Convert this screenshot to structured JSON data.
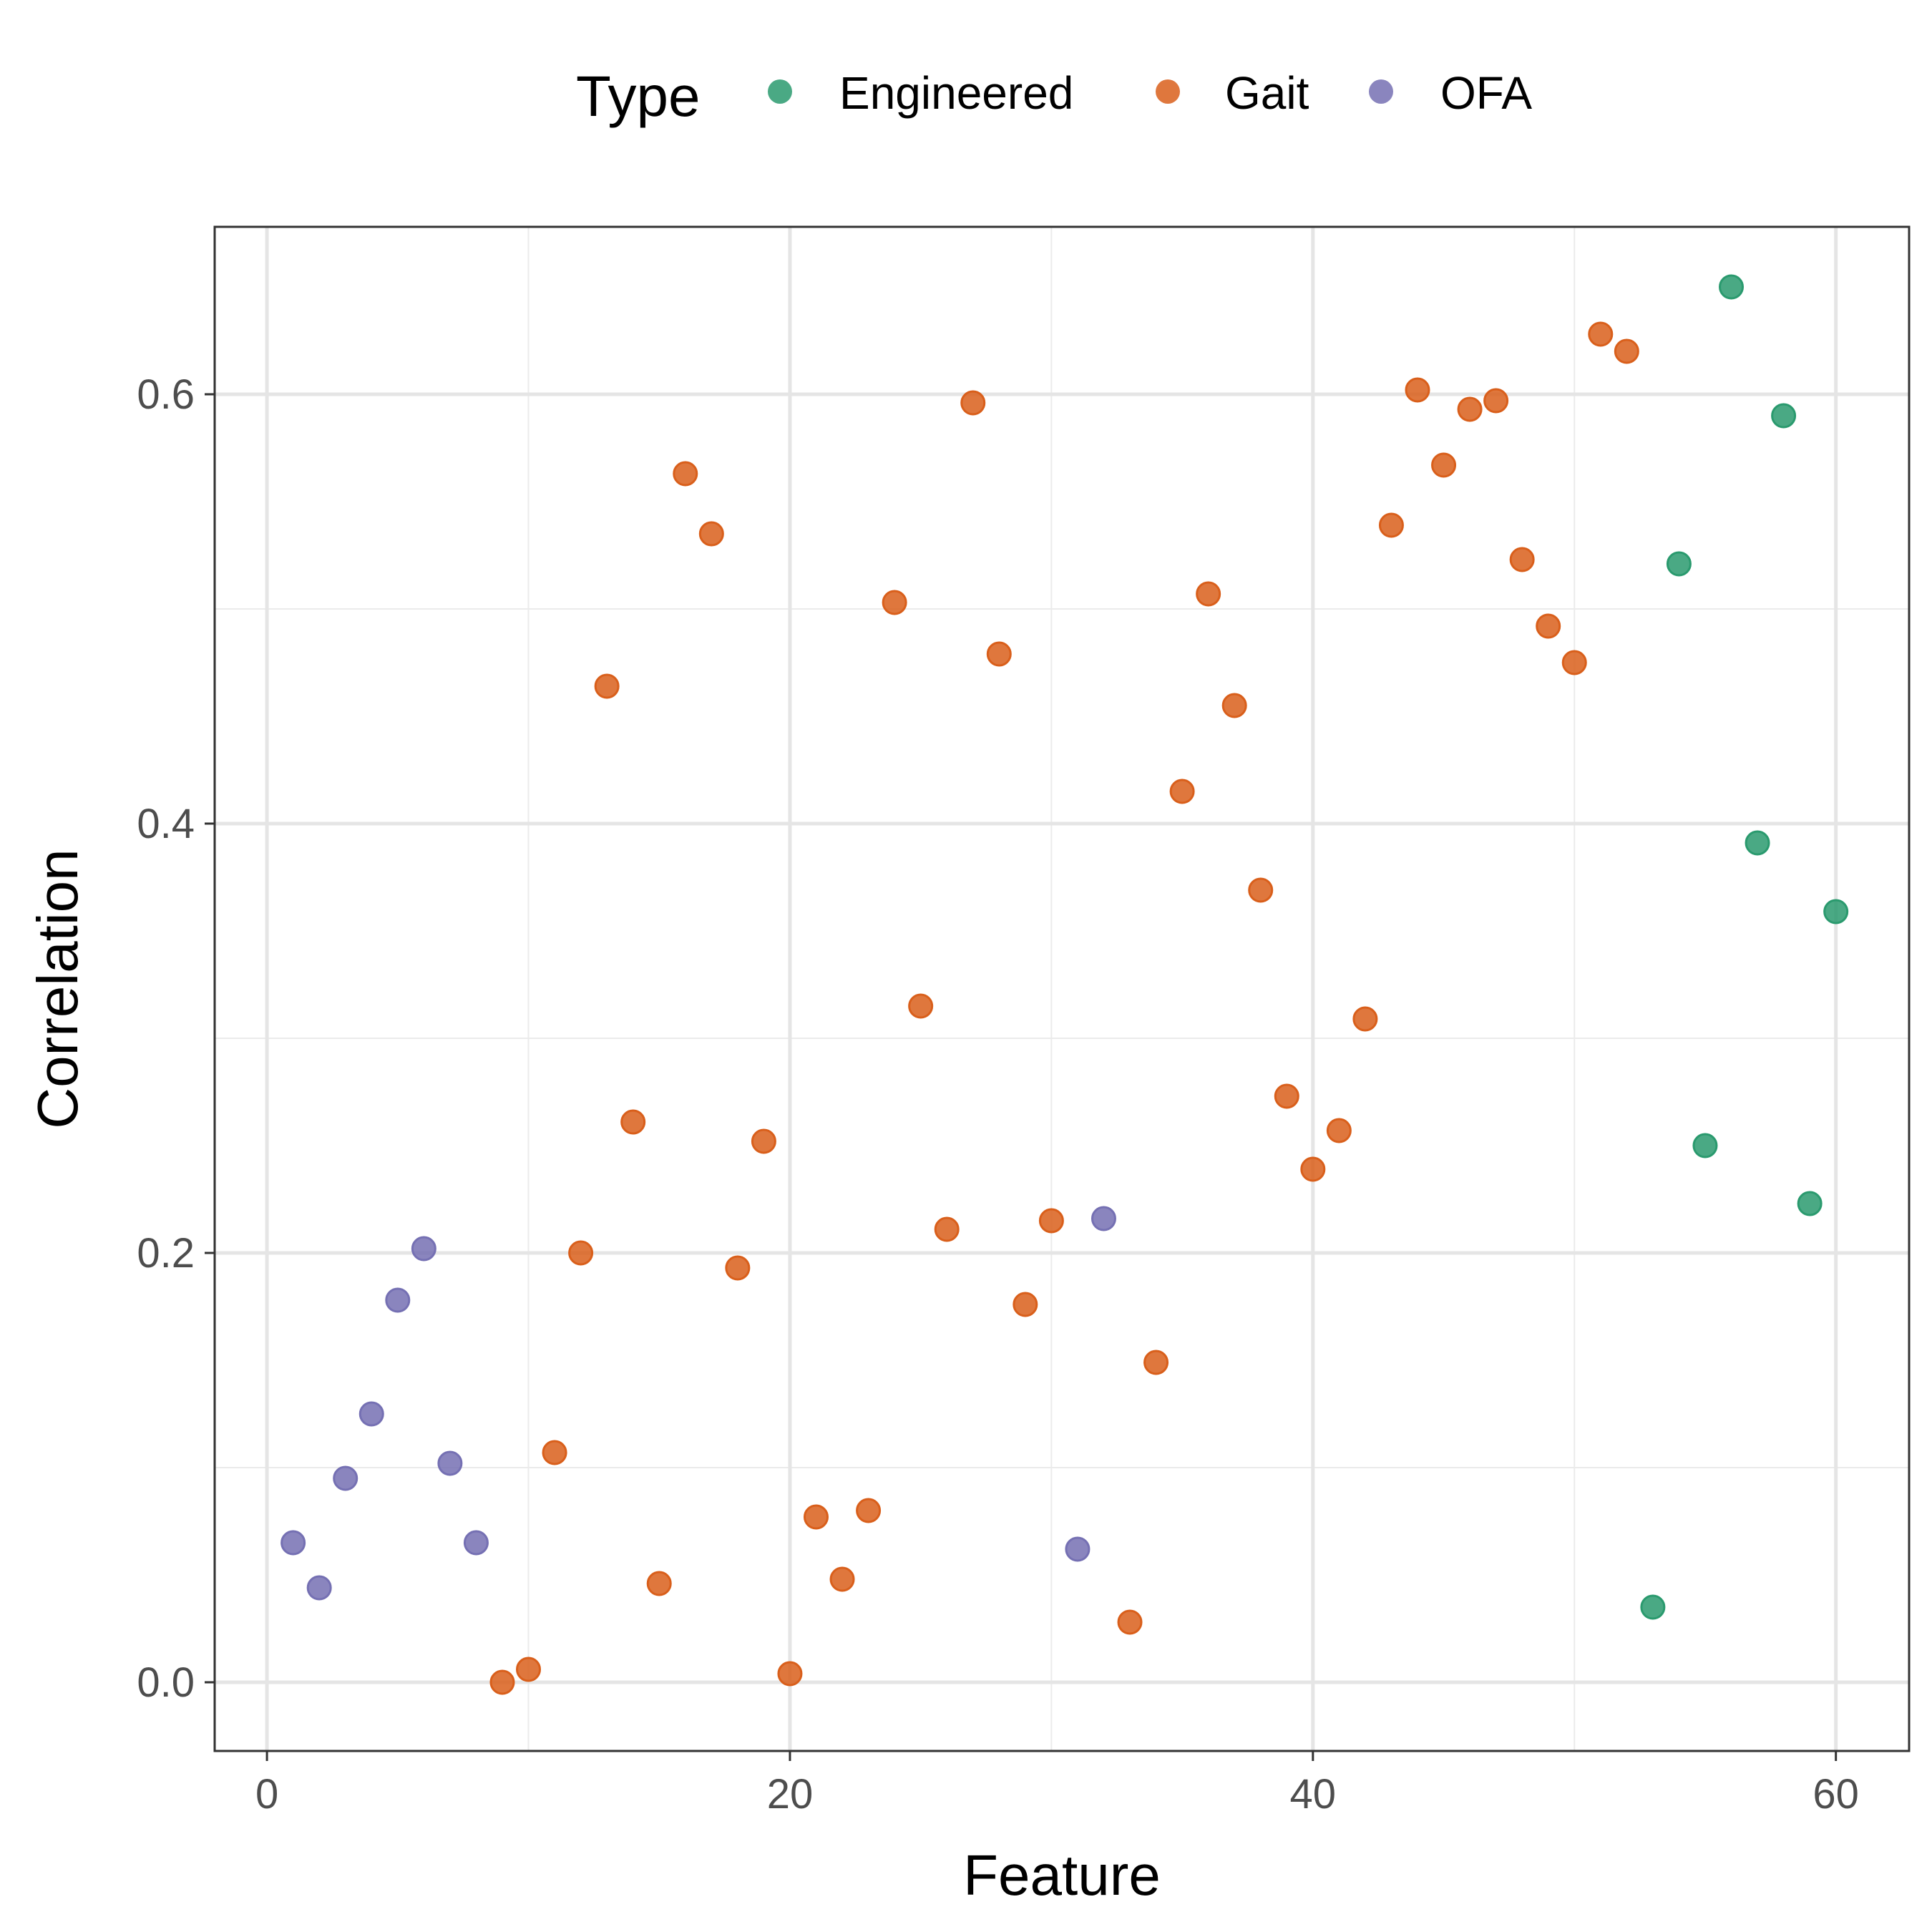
{
  "chart_data": {
    "type": "scatter",
    "xlabel": "Feature",
    "ylabel": "Correlation",
    "xlim": [
      -2,
      62.8
    ],
    "ylim": [
      -0.032,
      0.678
    ],
    "x_ticks": [
      0,
      20,
      40,
      60
    ],
    "y_ticks": [
      0.0,
      0.2,
      0.4,
      0.6
    ],
    "x_tick_labels": [
      "0",
      "20",
      "40",
      "60"
    ],
    "y_tick_labels": [
      "0.0",
      "0.2",
      "0.4",
      "0.6"
    ],
    "grid": true,
    "legend": {
      "title": "Type",
      "position": "top"
    },
    "series": [
      {
        "name": "Engineered",
        "color": "#2a9a6e",
        "points": [
          [
            53,
            0.035
          ],
          [
            54,
            0.521
          ],
          [
            55,
            0.25
          ],
          [
            56,
            0.65
          ],
          [
            57,
            0.391
          ],
          [
            58,
            0.59
          ],
          [
            59,
            0.223
          ],
          [
            60,
            0.359
          ]
        ]
      },
      {
        "name": "Gait",
        "color": "#d95f1b",
        "points": [
          [
            9,
            0.0
          ],
          [
            10,
            0.006
          ],
          [
            11,
            0.107
          ],
          [
            12,
            0.2
          ],
          [
            13,
            0.464
          ],
          [
            14,
            0.261
          ],
          [
            15,
            0.046
          ],
          [
            16,
            0.563
          ],
          [
            17,
            0.535
          ],
          [
            18,
            0.193
          ],
          [
            19,
            0.252
          ],
          [
            20,
            0.004
          ],
          [
            21,
            0.077
          ],
          [
            22,
            0.048
          ],
          [
            23,
            0.08
          ],
          [
            24,
            0.503
          ],
          [
            25,
            0.315
          ],
          [
            26,
            0.211
          ],
          [
            27,
            0.596
          ],
          [
            28,
            0.479
          ],
          [
            29,
            0.176
          ],
          [
            30,
            0.215
          ],
          [
            33,
            0.028
          ],
          [
            34,
            0.149
          ],
          [
            35,
            0.415
          ],
          [
            36,
            0.507
          ],
          [
            37,
            0.455
          ],
          [
            38,
            0.369
          ],
          [
            39,
            0.273
          ],
          [
            40,
            0.239
          ],
          [
            41,
            0.257
          ],
          [
            42,
            0.309
          ],
          [
            43,
            0.539
          ],
          [
            44,
            0.602
          ],
          [
            45,
            0.567
          ],
          [
            46,
            0.593
          ],
          [
            47,
            0.597
          ],
          [
            48,
            0.523
          ],
          [
            49,
            0.492
          ],
          [
            50,
            0.475
          ],
          [
            51,
            0.628
          ],
          [
            52,
            0.62
          ]
        ]
      },
      {
        "name": "OFA",
        "color": "#7570b3",
        "points": [
          [
            1,
            0.065
          ],
          [
            2,
            0.044
          ],
          [
            3,
            0.095
          ],
          [
            4,
            0.125
          ],
          [
            5,
            0.178
          ],
          [
            6,
            0.202
          ],
          [
            7,
            0.102
          ],
          [
            8,
            0.065
          ],
          [
            31,
            0.062
          ],
          [
            32,
            0.216
          ]
        ]
      }
    ]
  }
}
